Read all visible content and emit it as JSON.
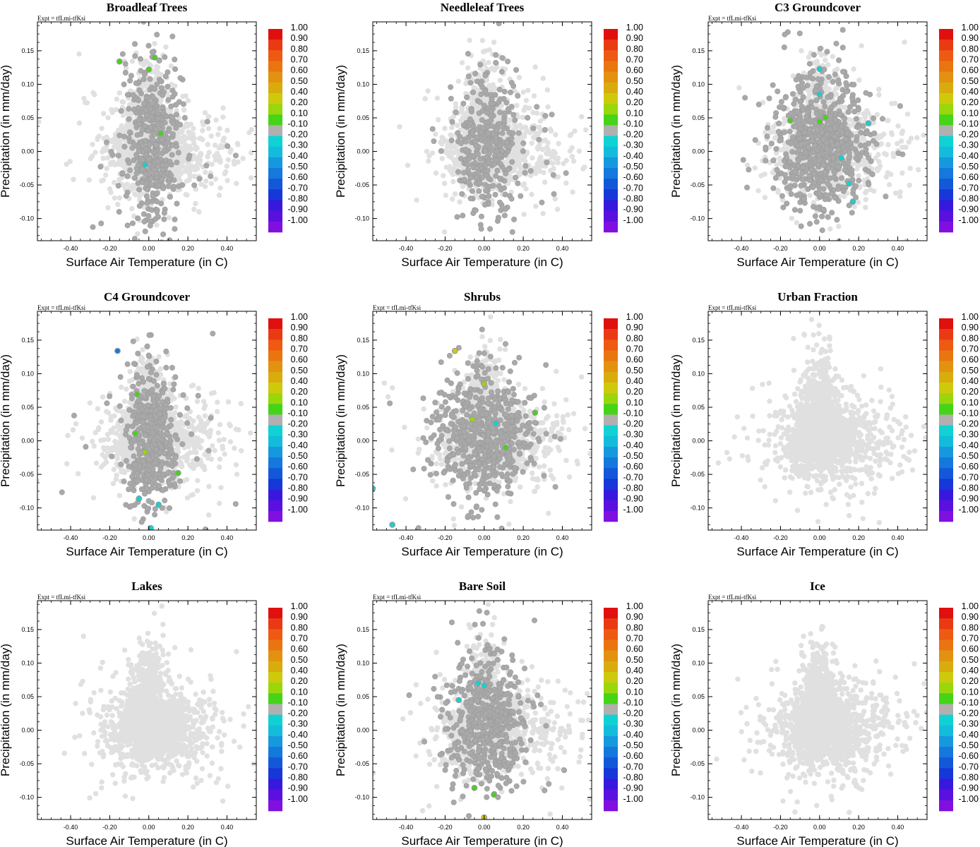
{
  "figure": {
    "description_label": "Scatter plots of surface air temperature vs precipitation colored by correlation per surface type"
  },
  "chart_data": [
    {
      "type": "scatter",
      "title": "Broadleaf Trees",
      "subtitle": "Expt = tfLmi-tfKsi",
      "xlabel": "Surface Air Temperature (in C)",
      "ylabel": "Precipitation (in mm/day)",
      "xlim": [
        -0.57,
        0.55
      ],
      "ylim": [
        -0.133,
        0.193
      ],
      "n_light": 1600,
      "n_dark": 450,
      "dark_xspread": 0.065,
      "dark_yspread": 0.055,
      "dark_xoffset": 0.02,
      "seed": 11,
      "highlighted": [
        {
          "x": -0.15,
          "y": 0.134,
          "r": 0.1
        },
        {
          "x": 0.03,
          "y": 0.14,
          "r": 0.1
        },
        {
          "x": 0.0,
          "y": 0.122,
          "r": 0.1
        },
        {
          "x": 0.06,
          "y": 0.027,
          "r": 0.1
        },
        {
          "x": -0.02,
          "y": -0.02,
          "r": -0.2
        }
      ]
    },
    {
      "type": "scatter",
      "title": "Needleleaf Trees",
      "subtitle": "",
      "xlabel": "Surface Air Temperature (in C)",
      "ylabel": "Precipitation (in mm/day)",
      "xlim": [
        -0.57,
        0.55
      ],
      "ylim": [
        -0.133,
        0.193
      ],
      "n_light": 1600,
      "n_dark": 380,
      "dark_xspread": 0.07,
      "dark_yspread": 0.05,
      "dark_xoffset": 0.02,
      "seed": 23,
      "highlighted": []
    },
    {
      "type": "scatter",
      "title": "C3 Groundcover",
      "subtitle": "Expt = tfLmi-tfKsi",
      "xlabel": "Surface Air Temperature (in C)",
      "ylabel": "Precipitation (in mm/day)",
      "xlim": [
        -0.57,
        0.55
      ],
      "ylim": [
        -0.133,
        0.193
      ],
      "n_light": 1600,
      "n_dark": 700,
      "dark_xspread": 0.11,
      "dark_yspread": 0.045,
      "dark_xoffset": 0.0,
      "seed": 37,
      "highlighted": [
        {
          "x": 0.0,
          "y": 0.123,
          "r": -0.2
        },
        {
          "x": 0.0,
          "y": 0.085,
          "r": -0.2
        },
        {
          "x": -0.15,
          "y": 0.046,
          "r": 0.1
        },
        {
          "x": 0.0,
          "y": 0.044,
          "r": 0.1
        },
        {
          "x": 0.03,
          "y": 0.051,
          "r": 0.1
        },
        {
          "x": 0.25,
          "y": 0.042,
          "r": -0.2
        },
        {
          "x": 0.11,
          "y": -0.01,
          "r": -0.2
        },
        {
          "x": 0.15,
          "y": -0.048,
          "r": -0.2
        },
        {
          "x": 0.17,
          "y": -0.075,
          "r": -0.2
        }
      ]
    },
    {
      "type": "scatter",
      "title": "C4 Groundcover",
      "subtitle": "Expt = tfLmi-tfKsi",
      "xlabel": "Surface Air Temperature (in C)",
      "ylabel": "Precipitation (in mm/day)",
      "xlim": [
        -0.57,
        0.55
      ],
      "ylim": [
        -0.133,
        0.193
      ],
      "n_light": 1600,
      "n_dark": 480,
      "dark_xspread": 0.06,
      "dark_yspread": 0.05,
      "dark_xoffset": 0.01,
      "seed": 41,
      "highlighted": [
        {
          "x": -0.16,
          "y": 0.134,
          "r": -0.5
        },
        {
          "x": -0.06,
          "y": 0.069,
          "r": 0.1
        },
        {
          "x": -0.07,
          "y": 0.011,
          "r": 0.1
        },
        {
          "x": -0.02,
          "y": -0.017,
          "r": 0.2
        },
        {
          "x": 0.15,
          "y": -0.048,
          "r": 0.1
        },
        {
          "x": -0.05,
          "y": -0.086,
          "r": -0.2
        },
        {
          "x": 0.05,
          "y": -0.095,
          "r": -0.2
        },
        {
          "x": 0.01,
          "y": -0.13,
          "r": -0.2
        }
      ]
    },
    {
      "type": "scatter",
      "title": "Shrubs",
      "subtitle": "Expt = tfLmi-tfKsi",
      "xlabel": "Surface Air Temperature (in C)",
      "ylabel": "Precipitation (in mm/day)",
      "xlim": [
        -0.57,
        0.55
      ],
      "ylim": [
        -0.133,
        0.193
      ],
      "n_light": 1600,
      "n_dark": 600,
      "dark_xspread": 0.12,
      "dark_yspread": 0.045,
      "dark_xoffset": 0.0,
      "seed": 53,
      "highlighted": [
        {
          "x": -0.15,
          "y": 0.134,
          "r": 0.4
        },
        {
          "x": 0.0,
          "y": 0.085,
          "r": 0.2
        },
        {
          "x": -0.06,
          "y": 0.032,
          "r": 0.2
        },
        {
          "x": 0.06,
          "y": 0.026,
          "r": -0.2
        },
        {
          "x": 0.26,
          "y": 0.042,
          "r": 0.1
        },
        {
          "x": 0.11,
          "y": -0.01,
          "r": 0.1
        },
        {
          "x": -0.57,
          "y": -0.071,
          "r": -0.2
        },
        {
          "x": -0.47,
          "y": -0.125,
          "r": -0.2
        }
      ]
    },
    {
      "type": "scatter",
      "title": "Urban Fraction",
      "subtitle": "Expt = tfLmi-tfKsi",
      "xlabel": "Surface Air Temperature (in C)",
      "ylabel": "Precipitation (in mm/day)",
      "xlim": [
        -0.57,
        0.55
      ],
      "ylim": [
        -0.133,
        0.193
      ],
      "n_light": 1800,
      "n_dark": 0,
      "dark_xspread": 0.1,
      "dark_yspread": 0.05,
      "dark_xoffset": 0.0,
      "seed": 67,
      "highlighted": []
    },
    {
      "type": "scatter",
      "title": "Lakes",
      "subtitle": "Expt = tfLmi-tfKsi",
      "xlabel": "Surface Air Temperature (in C)",
      "ylabel": "Precipitation (in mm/day)",
      "xlim": [
        -0.57,
        0.55
      ],
      "ylim": [
        -0.133,
        0.193
      ],
      "n_light": 1800,
      "n_dark": 0,
      "dark_xspread": 0.1,
      "dark_yspread": 0.05,
      "dark_xoffset": 0.0,
      "seed": 71,
      "highlighted": []
    },
    {
      "type": "scatter",
      "title": "Bare Soil",
      "subtitle": "Expt = tfLmi-tfKsi",
      "xlabel": "Surface Air Temperature (in C)",
      "ylabel": "Precipitation (in mm/day)",
      "xlim": [
        -0.57,
        0.55
      ],
      "ylim": [
        -0.133,
        0.193
      ],
      "n_light": 1600,
      "n_dark": 520,
      "dark_xspread": 0.1,
      "dark_yspread": 0.045,
      "dark_xoffset": 0.02,
      "seed": 83,
      "highlighted": [
        {
          "x": -0.03,
          "y": 0.07,
          "r": -0.2
        },
        {
          "x": 0.0,
          "y": 0.066,
          "r": -0.2
        },
        {
          "x": -0.13,
          "y": 0.045,
          "r": -0.2
        },
        {
          "x": -0.05,
          "y": -0.086,
          "r": 0.1
        },
        {
          "x": 0.05,
          "y": -0.096,
          "r": 0.1
        },
        {
          "x": 0.0,
          "y": -0.13,
          "r": 0.4
        }
      ]
    },
    {
      "type": "scatter",
      "title": "Ice",
      "subtitle": "Expt = tfLmi-tfKsi",
      "xlabel": "Surface Air Temperature (in C)",
      "ylabel": "Precipitation (in mm/day)",
      "xlim": [
        -0.57,
        0.55
      ],
      "ylim": [
        -0.133,
        0.193
      ],
      "n_light": 1800,
      "n_dark": 0,
      "dark_xspread": 0.1,
      "dark_yspread": 0.05,
      "dark_xoffset": 0.0,
      "seed": 97,
      "highlighted": []
    }
  ],
  "axes": {
    "x_ticks": [
      -0.4,
      -0.2,
      0.0,
      0.2,
      0.4
    ],
    "x_tick_labels": [
      "-0.40",
      "-0.20",
      "0.00",
      "0.20",
      "0.40"
    ],
    "y_ticks": [
      -0.1,
      -0.05,
      0.0,
      0.05,
      0.1,
      0.15
    ],
    "y_tick_labels": [
      "-0.10",
      "-0.05",
      "0.00",
      "0.05",
      "0.10",
      "0.15"
    ]
  },
  "colorbar": {
    "labels": [
      "1.00",
      "0.90",
      "0.80",
      "0.70",
      "0.60",
      "0.50",
      "0.40",
      "0.20",
      "0.10",
      "-0.10",
      "-0.20",
      "-0.30",
      "-0.40",
      "-0.50",
      "-0.60",
      "-0.70",
      "-0.80",
      "-0.90",
      "-1.00"
    ],
    "colors": [
      "#e0100f",
      "#ea3a14",
      "#ee5a12",
      "#ea7510",
      "#e39110",
      "#d9ac0e",
      "#cfc90c",
      "#9ad60c",
      "#45d418",
      "#b0b0b0",
      "#10d2d4",
      "#14bcdc",
      "#1698de",
      "#1478dc",
      "#1458da",
      "#1638d8",
      "#3818dc",
      "#5a10de",
      "#8010e0"
    ]
  },
  "point_colors": {
    "light": "#e0e0e0",
    "dark": "#a9a9a9"
  }
}
